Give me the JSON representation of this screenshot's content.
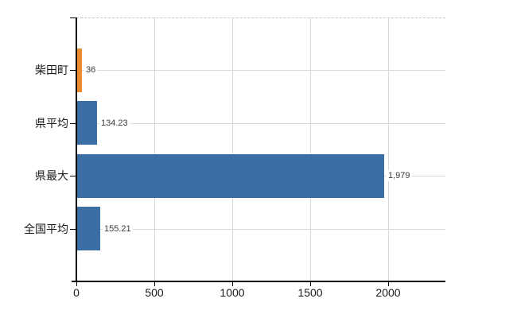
{
  "chart_data": {
    "type": "bar",
    "orientation": "horizontal",
    "title": "",
    "categories": [
      "柴田町",
      "県平均",
      "県最大",
      "全国平均"
    ],
    "values": [
      36,
      134.23,
      1979,
      155.21
    ],
    "value_labels": [
      "36",
      "134.23",
      "1,979",
      "155.21"
    ],
    "bar_colors": [
      "#ED8B33",
      "#3A6EA5",
      "#3A6EA5",
      "#3A6EA5"
    ],
    "x_ticks": [
      0,
      500,
      1000,
      1500,
      2000
    ],
    "x_tick_labels": [
      "0",
      "500",
      "1000",
      "1500",
      "2000"
    ],
    "xlim": [
      0,
      2370
    ],
    "grid": true,
    "legend": "none",
    "colors": {
      "highlight_bar": "#ED8B33",
      "default_bar": "#3A6EA5",
      "gridline": "#D9D9D9",
      "axis": "#000000",
      "category_label": "#1A1A1A",
      "value_label": "#3A3A3A"
    }
  }
}
